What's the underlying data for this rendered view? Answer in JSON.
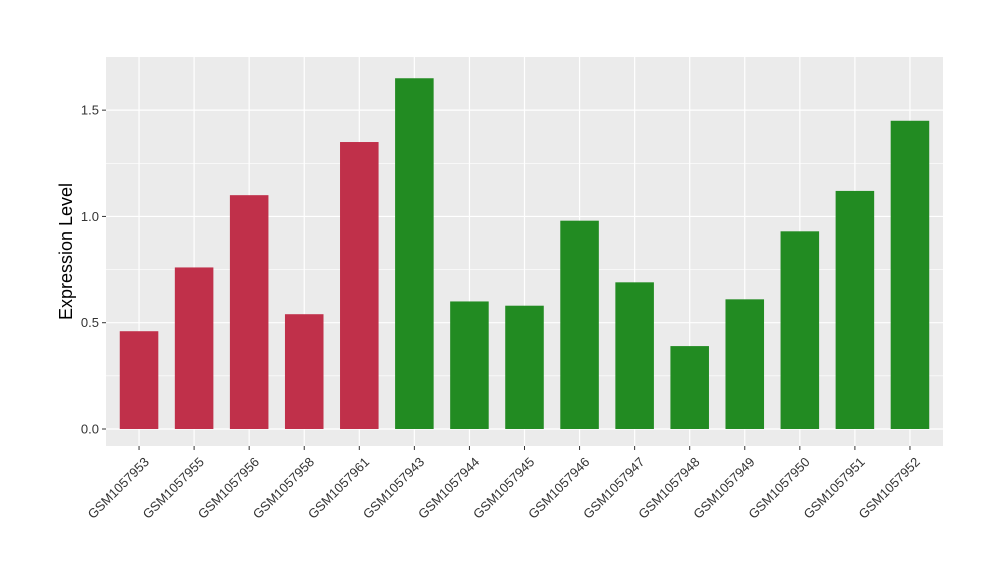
{
  "chart_data": {
    "type": "bar",
    "categories": [
      "GSM1057953",
      "GSM1057955",
      "GSM1057956",
      "GSM1057958",
      "GSM1057961",
      "GSM1057943",
      "GSM1057944",
      "GSM1057945",
      "GSM1057946",
      "GSM1057947",
      "GSM1057948",
      "GSM1057949",
      "GSM1057950",
      "GSM1057951",
      "GSM1057952"
    ],
    "values": [
      0.46,
      0.76,
      1.1,
      0.54,
      1.35,
      1.65,
      0.6,
      0.58,
      0.98,
      0.69,
      0.39,
      0.61,
      0.93,
      1.12,
      1.45
    ],
    "bar_colors": [
      "#C0304A",
      "#C0304A",
      "#C0304A",
      "#C0304A",
      "#C0304A",
      "#228B22",
      "#228B22",
      "#228B22",
      "#228B22",
      "#228B22",
      "#228B22",
      "#228B22",
      "#228B22",
      "#228B22",
      "#228B22"
    ],
    "title": "",
    "xlabel": "",
    "ylabel": "Expression Level",
    "ylim": [
      -0.08,
      1.75
    ],
    "yticks": [
      0.0,
      0.5,
      1.0,
      1.5
    ],
    "ytick_labels": [
      "0.0",
      "0.5",
      "1.0",
      "1.5"
    ],
    "grid": true,
    "legend": "none",
    "panel_background": "#EBEBEB",
    "grid_color": "#FFFFFF"
  }
}
